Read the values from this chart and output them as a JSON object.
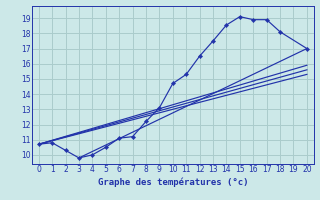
{
  "background_color": "#cce8e8",
  "grid_color": "#aacccc",
  "line_color": "#2233aa",
  "xlabel": "Graphe des températures (°c)",
  "xlim": [
    -0.5,
    20.5
  ],
  "ylim": [
    9.4,
    19.8
  ],
  "xticks": [
    0,
    1,
    2,
    3,
    4,
    5,
    6,
    7,
    8,
    9,
    10,
    11,
    12,
    13,
    14,
    15,
    16,
    17,
    18,
    19,
    20
  ],
  "yticks": [
    10,
    11,
    12,
    13,
    14,
    15,
    16,
    17,
    18,
    19
  ],
  "curve1_x": [
    0,
    1,
    2,
    3,
    4,
    5,
    6,
    7,
    8,
    9,
    10,
    11,
    12,
    13,
    14,
    15,
    16,
    17,
    18,
    20
  ],
  "curve1_y": [
    10.7,
    10.8,
    10.3,
    9.8,
    10.0,
    10.5,
    11.1,
    11.2,
    12.2,
    13.1,
    14.7,
    15.3,
    16.5,
    17.5,
    18.55,
    19.1,
    18.9,
    18.9,
    18.1,
    17.0
  ],
  "line2_x": [
    0,
    20
  ],
  "line2_y": [
    10.7,
    15.9
  ],
  "line3_x": [
    0,
    20
  ],
  "line3_y": [
    10.7,
    15.3
  ],
  "line4_x": [
    0,
    20
  ],
  "line4_y": [
    10.7,
    15.6
  ],
  "line5_x": [
    3,
    20
  ],
  "line5_y": [
    9.8,
    17.0
  ]
}
